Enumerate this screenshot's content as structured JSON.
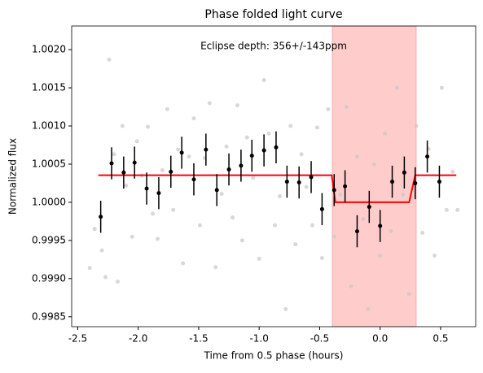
{
  "chart_data": {
    "type": "scatter",
    "title": "Phase folded light curve",
    "xlabel": "Time from 0.5 phase (hours)",
    "ylabel": "Normalized flux",
    "annotation": "Eclipse depth: 356+/-143ppm",
    "xlim": [
      -2.55,
      0.79
    ],
    "ylim": [
      0.99837,
      1.00231
    ],
    "xticks": [
      {
        "value": -2.5,
        "label": "-2.5"
      },
      {
        "value": -2.0,
        "label": "-2.0"
      },
      {
        "value": -1.5,
        "label": "-1.5"
      },
      {
        "value": -1.0,
        "label": "-1.0"
      },
      {
        "value": -0.5,
        "label": "-0.5"
      },
      {
        "value": 0.0,
        "label": "0.0"
      },
      {
        "value": 0.5,
        "label": "0.5"
      }
    ],
    "yticks": [
      {
        "value": 0.9985,
        "label": "0.9985"
      },
      {
        "value": 0.999,
        "label": "0.9990"
      },
      {
        "value": 0.9995,
        "label": "0.9995"
      },
      {
        "value": 1.0,
        "label": "1.0000"
      },
      {
        "value": 1.0005,
        "label": "1.0005"
      },
      {
        "value": 1.001,
        "label": "1.0010"
      },
      {
        "value": 1.0015,
        "label": "1.0015"
      },
      {
        "value": 1.002,
        "label": "1.0020"
      }
    ],
    "eclipse_span": {
      "x": [
        -0.395,
        0.298
      ],
      "color": "#ffcccc"
    },
    "raw_points": {
      "color": "#c8c8c8",
      "x": [
        -2.4,
        -2.36,
        -2.3,
        -2.27,
        -2.24,
        -2.2,
        -2.17,
        -2.13,
        -2.1,
        -2.05,
        -2.01,
        -1.97,
        -1.92,
        -1.88,
        -1.84,
        -1.8,
        -1.76,
        -1.71,
        -1.67,
        -1.63,
        -1.58,
        -1.54,
        -1.49,
        -1.45,
        -1.41,
        -1.36,
        -1.31,
        -1.27,
        -1.22,
        -1.18,
        -1.14,
        -1.1,
        -1.05,
        -1.0,
        -0.96,
        -0.92,
        -0.87,
        -0.83,
        -0.78,
        -0.74,
        -0.7,
        -0.65,
        -0.61,
        -0.56,
        -0.52,
        -0.48,
        -0.43,
        -0.38,
        -0.33,
        -0.28,
        -0.24,
        -0.19,
        -0.14,
        -0.1,
        -0.05,
        0.0,
        0.04,
        0.09,
        0.14,
        0.19,
        0.24,
        0.3,
        0.35,
        0.4,
        0.45,
        0.51,
        0.55,
        0.6,
        0.64
      ],
      "y": [
        0.99914,
        0.99965,
        0.99937,
        0.99902,
        1.00187,
        1.00063,
        0.99896,
        1.001,
        1.00022,
        0.99955,
        1.0008,
        1.00035,
        1.00099,
        0.99985,
        0.99952,
        1.00042,
        1.00122,
        0.9999,
        1.00069,
        0.9992,
        1.0006,
        1.0011,
        0.9997,
        1.00058,
        1.0013,
        0.99915,
        1.00011,
        1.00073,
        0.9998,
        1.00127,
        0.9995,
        1.00085,
        1.00032,
        0.99926,
        1.0016,
        1.0009,
        0.9997,
        1.00008,
        0.9986,
        1.001,
        0.99945,
        1.00063,
        1.0002,
        0.9997,
        1.00098,
        0.99927,
        1.00122,
        0.99955,
        1.0001,
        1.00125,
        0.9989,
        1.0006,
        0.99978,
        0.9986,
        1.0005,
        0.9993,
        1.0009,
        0.99962,
        1.0015,
        1.0001,
        0.9988,
        1.001,
        0.9996,
        1.0007,
        0.9993,
        1.0015,
        0.9999,
        1.0004,
        0.9999
      ]
    },
    "binned": {
      "color": "#000000",
      "x": [
        -2.31,
        -2.22,
        -2.12,
        -2.03,
        -1.93,
        -1.83,
        -1.73,
        -1.64,
        -1.54,
        -1.44,
        -1.35,
        -1.25,
        -1.15,
        -1.06,
        -0.96,
        -0.86,
        -0.77,
        -0.67,
        -0.57,
        -0.48,
        -0.38,
        -0.29,
        -0.19,
        -0.09,
        0.0,
        0.1,
        0.2,
        0.29,
        0.39,
        0.49
      ],
      "y": [
        0.99981,
        1.00051,
        1.00039,
        1.00052,
        1.00018,
        1.00012,
        1.0004,
        1.00065,
        1.0003,
        1.00069,
        1.00016,
        1.00043,
        1.00048,
        1.00061,
        1.00068,
        1.00072,
        1.00027,
        1.00026,
        1.00033,
        0.99991,
        1.00016,
        1.00021,
        0.99962,
        0.99994,
        0.99969,
        1.00027,
        1.00039,
        1.00025,
        1.0006,
        1.00027
      ],
      "errors": [
        0.00021,
        0.00021,
        0.00021,
        0.00021,
        0.00021,
        0.00021,
        0.00021,
        0.00021,
        0.00021,
        0.00021,
        0.00021,
        0.00021,
        0.00021,
        0.00021,
        0.00021,
        0.00021,
        0.00021,
        0.00021,
        0.00021,
        0.00021,
        0.00021,
        0.00021,
        0.00021,
        0.00021,
        0.00021,
        0.00021,
        0.00021,
        0.00021,
        0.00021,
        0.00021
      ]
    },
    "model": {
      "color": "#ff0000",
      "x": [
        -2.33,
        -0.4,
        -0.37,
        0.24,
        0.29,
        0.63
      ],
      "y": [
        1.000355,
        1.000355,
        1.0,
        1.0,
        1.000355,
        1.000355
      ]
    }
  }
}
